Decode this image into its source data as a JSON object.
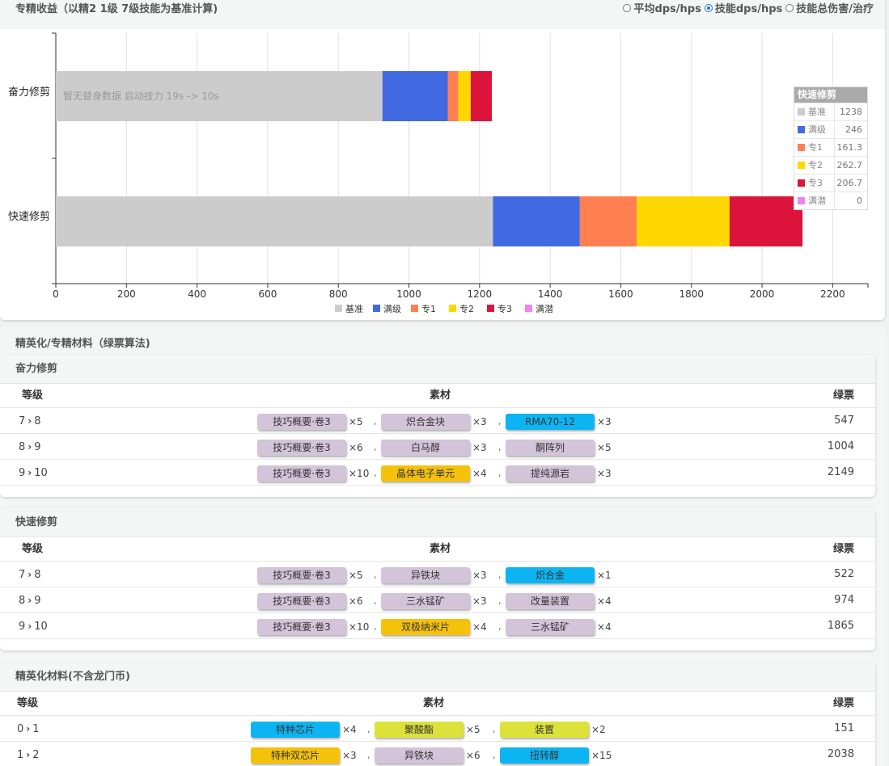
{
  "chart_section": {
    "title": "专精收益（以精2 1级 7级技能为基准计算)",
    "radio_options": [
      {
        "label": "平均dps/hps",
        "checked": false
      },
      {
        "label": "技能dps/hps",
        "checked": true
      },
      {
        "label": "技能总伤害/治疗",
        "checked": false
      }
    ]
  },
  "chart_data": {
    "type": "bar",
    "orientation": "horizontal",
    "stacked": true,
    "categories": [
      "奋力修剪",
      "快速修剪"
    ],
    "series": [
      {
        "name": "基准",
        "color": "#cccccc",
        "values": [
          925,
          1238
        ]
      },
      {
        "name": "满级",
        "color": "#4169e1",
        "values": [
          185,
          246
        ]
      },
      {
        "name": "专1",
        "color": "#ff7f50",
        "values": [
          30,
          161.3
        ]
      },
      {
        "name": "专2",
        "color": "#ffd700",
        "values": [
          35,
          262.7
        ]
      },
      {
        "name": "专3",
        "color": "#dc143c",
        "values": [
          60,
          206.7
        ]
      },
      {
        "name": "满潜",
        "color": "#ee82ee",
        "values": [
          0,
          0
        ]
      }
    ],
    "xlim": [
      0,
      2300
    ],
    "xticks": [
      0,
      200,
      400,
      600,
      800,
      1000,
      1200,
      1400,
      1600,
      1800,
      2000,
      2200
    ],
    "legend_position": "bottom",
    "annotation": "暂无替身数据 启动技力 19s -> 10s",
    "grid": true
  },
  "tooltip": {
    "title": "快速修剪",
    "rows": [
      {
        "name": "基准",
        "value": "1238",
        "color": "#cccccc"
      },
      {
        "name": "满级",
        "value": "246",
        "color": "#4169e1"
      },
      {
        "name": "专1",
        "value": "161.3",
        "color": "#ff7f50"
      },
      {
        "name": "专2",
        "value": "262.7",
        "color": "#ffd700"
      },
      {
        "name": "专3",
        "value": "206.7",
        "color": "#dc143c"
      },
      {
        "name": "满潜",
        "value": "0",
        "color": "#ee82ee"
      }
    ]
  },
  "materials_section": {
    "title": "精英化/专精材料（绿票算法)",
    "headers": {
      "level": "等级",
      "materials": "素材",
      "tickets": "绿票"
    },
    "skills": [
      {
        "name": "奋力修剪",
        "rows": [
          {
            "from": "7",
            "to": "8",
            "items": [
              {
                "name": "技巧概要·卷3",
                "count": "×5",
                "color": "#d4c4d9"
              },
              {
                "name": "炽合金块",
                "count": "×3",
                "color": "#d4c4d9"
              },
              {
                "name": "RMA70-12",
                "count": "×3",
                "color": "#0cb5f2"
              }
            ],
            "tickets": "547"
          },
          {
            "from": "8",
            "to": "9",
            "items": [
              {
                "name": "技巧概要·卷3",
                "count": "×6",
                "color": "#d4c4d9"
              },
              {
                "name": "白马醇",
                "count": "×3",
                "color": "#d4c4d9"
              },
              {
                "name": "酮阵列",
                "count": "×5",
                "color": "#d4c4d9"
              }
            ],
            "tickets": "1004"
          },
          {
            "from": "9",
            "to": "10",
            "items": [
              {
                "name": "技巧概要·卷3",
                "count": "×10",
                "color": "#d4c4d9"
              },
              {
                "name": "晶体电子单元",
                "count": "×4",
                "color": "#f5c20a"
              },
              {
                "name": "提纯源岩",
                "count": "×3",
                "color": "#d4c4d9"
              }
            ],
            "tickets": "2149"
          }
        ]
      },
      {
        "name": "快速修剪",
        "rows": [
          {
            "from": "7",
            "to": "8",
            "items": [
              {
                "name": "技巧概要·卷3",
                "count": "×5",
                "color": "#d4c4d9"
              },
              {
                "name": "异铁块",
                "count": "×3",
                "color": "#d4c4d9"
              },
              {
                "name": "炽合金",
                "count": "×1",
                "color": "#0cb5f2"
              }
            ],
            "tickets": "522"
          },
          {
            "from": "8",
            "to": "9",
            "items": [
              {
                "name": "技巧概要·卷3",
                "count": "×6",
                "color": "#d4c4d9"
              },
              {
                "name": "三水锰矿",
                "count": "×3",
                "color": "#d4c4d9"
              },
              {
                "name": "改量装置",
                "count": "×4",
                "color": "#d4c4d9"
              }
            ],
            "tickets": "974"
          },
          {
            "from": "9",
            "to": "10",
            "items": [
              {
                "name": "技巧概要·卷3",
                "count": "×10",
                "color": "#d4c4d9"
              },
              {
                "name": "双极纳米片",
                "count": "×4",
                "color": "#f5c20a"
              },
              {
                "name": "三水锰矿",
                "count": "×4",
                "color": "#d4c4d9"
              }
            ],
            "tickets": "1865"
          }
        ]
      }
    ]
  },
  "elite_section": {
    "title": "精英化材料(不含龙门币)",
    "rows": [
      {
        "from": "0",
        "to": "1",
        "items": [
          {
            "name": "特种芯片",
            "count": "×4",
            "color": "#0cb5f2"
          },
          {
            "name": "聚酸酯",
            "count": "×5",
            "color": "#dce23a"
          },
          {
            "name": "装置",
            "count": "×2",
            "color": "#dce23a"
          }
        ],
        "tickets": "151"
      },
      {
        "from": "1",
        "to": "2",
        "items": [
          {
            "name": "特种双芯片",
            "count": "×3",
            "color": "#f5c20a"
          },
          {
            "name": "异铁块",
            "count": "×6",
            "color": "#d4c4d9"
          },
          {
            "name": "扭转醇",
            "count": "×15",
            "color": "#0cb5f2"
          }
        ],
        "tickets": "2038"
      }
    ]
  }
}
